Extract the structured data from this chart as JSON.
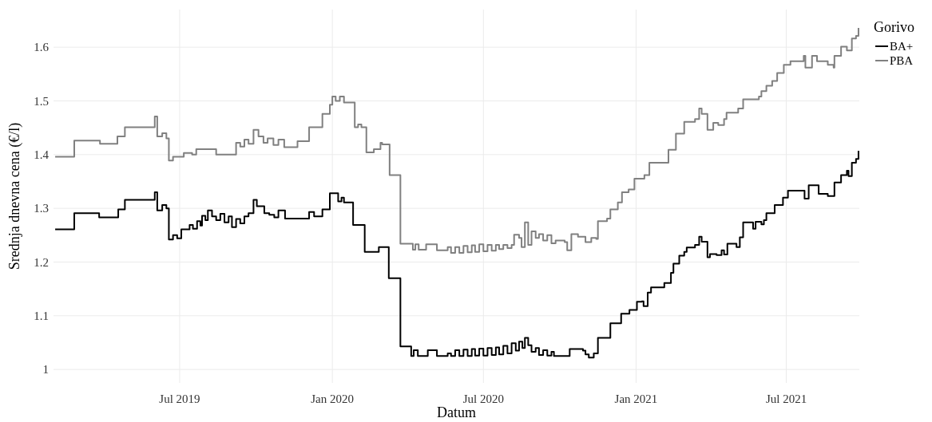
{
  "chart_data": {
    "type": "step",
    "xlabel": "Datum",
    "ylabel": "Srednja dnevna cena (€/l)",
    "legend_title": "Gorivo",
    "legend": "top right",
    "grid": true,
    "line_style": "solid",
    "xlim": [
      "2019-01-30",
      "2021-09-27"
    ],
    "xticks": [
      {
        "value": "2019-07-01",
        "label": "Jul 2019"
      },
      {
        "value": "2020-01-01",
        "label": "Jan 2020"
      },
      {
        "value": "2020-07-01",
        "label": "Jul 2020"
      },
      {
        "value": "2021-01-01",
        "label": "Jan 2021"
      },
      {
        "value": "2021-07-01",
        "label": "Jul 2021"
      }
    ],
    "ylim": [
      0.975,
      1.67
    ],
    "yticks": [
      1,
      1.1,
      1.2,
      1.3,
      1.4,
      1.5,
      1.6
    ],
    "series": [
      {
        "name": "BA+",
        "color": "#000000",
        "x": [
          "2019-02-01",
          "2019-02-24",
          "2019-03-26",
          "2019-04-18",
          "2019-04-26",
          "2019-06-01",
          "2019-06-04",
          "2019-06-10",
          "2019-06-15",
          "2019-06-18",
          "2019-06-23",
          "2019-06-28",
          "2019-07-03",
          "2019-07-13",
          "2019-07-17",
          "2019-07-22",
          "2019-07-26",
          "2019-07-28",
          "2019-08-01",
          "2019-08-04",
          "2019-08-09",
          "2019-08-14",
          "2019-08-19",
          "2019-08-24",
          "2019-08-29",
          "2019-09-02",
          "2019-09-07",
          "2019-09-12",
          "2019-09-17",
          "2019-09-22",
          "2019-09-28",
          "2019-10-02",
          "2019-10-11",
          "2019-10-17",
          "2019-10-23",
          "2019-10-28",
          "2019-11-05",
          "2019-12-04",
          "2019-12-10",
          "2019-12-20",
          "2019-12-29",
          "2020-01-08",
          "2020-01-12",
          "2020-01-15",
          "2020-01-26",
          "2020-02-09",
          "2020-02-26",
          "2020-03-09",
          "2020-03-23",
          "2020-04-05",
          "2020-04-08",
          "2020-04-13",
          "2020-04-25",
          "2020-05-06",
          "2020-05-14",
          "2020-05-19",
          "2020-05-23",
          "2020-05-28",
          "2020-06-02",
          "2020-06-07",
          "2020-06-12",
          "2020-06-17",
          "2020-06-21",
          "2020-06-26",
          "2020-07-01",
          "2020-07-06",
          "2020-07-11",
          "2020-07-16",
          "2020-07-20",
          "2020-07-25",
          "2020-07-30",
          "2020-08-04",
          "2020-08-09",
          "2020-08-13",
          "2020-08-17",
          "2020-08-20",
          "2020-08-24",
          "2020-08-28",
          "2020-09-02",
          "2020-09-06",
          "2020-09-11",
          "2020-09-16",
          "2020-09-21",
          "2020-09-24",
          "2020-10-13",
          "2020-10-29",
          "2020-11-01",
          "2020-11-05",
          "2020-11-11",
          "2020-11-16",
          "2020-12-01",
          "2020-12-14",
          "2020-12-24",
          "2021-01-02",
          "2021-01-08",
          "2021-01-10",
          "2021-01-15",
          "2021-01-19",
          "2021-02-04",
          "2021-02-12",
          "2021-02-15",
          "2021-02-22",
          "2021-02-28",
          "2021-03-03",
          "2021-03-13",
          "2021-03-18",
          "2021-03-21",
          "2021-03-28",
          "2021-03-31",
          "2021-04-08",
          "2021-04-14",
          "2021-04-17",
          "2021-04-21",
          "2021-05-02",
          "2021-05-06",
          "2021-05-10",
          "2021-05-22",
          "2021-05-25",
          "2021-06-01",
          "2021-06-04",
          "2021-06-07",
          "2021-06-17",
          "2021-06-27",
          "2021-07-03",
          "2021-07-23",
          "2021-07-28",
          "2021-08-09",
          "2021-08-20",
          "2021-08-28",
          "2021-09-05",
          "2021-09-12",
          "2021-09-14",
          "2021-09-18",
          "2021-09-23",
          "2021-09-26"
        ],
        "values": [
          1.261,
          1.291,
          1.283,
          1.298,
          1.316,
          1.33,
          1.296,
          1.306,
          1.3,
          1.242,
          1.25,
          1.244,
          1.261,
          1.269,
          1.262,
          1.276,
          1.268,
          1.286,
          1.278,
          1.296,
          1.285,
          1.278,
          1.29,
          1.274,
          1.285,
          1.265,
          1.28,
          1.272,
          1.285,
          1.291,
          1.316,
          1.304,
          1.291,
          1.288,
          1.283,
          1.296,
          1.281,
          1.293,
          1.285,
          1.298,
          1.328,
          1.313,
          1.32,
          1.311,
          1.269,
          1.219,
          1.228,
          1.17,
          1.043,
          1.025,
          1.036,
          1.025,
          1.036,
          1.025,
          1.025,
          1.03,
          1.025,
          1.036,
          1.025,
          1.037,
          1.025,
          1.038,
          1.026,
          1.039,
          1.026,
          1.04,
          1.027,
          1.041,
          1.028,
          1.044,
          1.03,
          1.049,
          1.035,
          1.052,
          1.04,
          1.059,
          1.045,
          1.033,
          1.04,
          1.027,
          1.036,
          1.026,
          1.033,
          1.025,
          1.038,
          1.035,
          1.028,
          1.022,
          1.03,
          1.059,
          1.086,
          1.104,
          1.111,
          1.126,
          1.127,
          1.118,
          1.143,
          1.153,
          1.161,
          1.18,
          1.197,
          1.212,
          1.219,
          1.227,
          1.232,
          1.247,
          1.238,
          1.209,
          1.215,
          1.213,
          1.222,
          1.214,
          1.234,
          1.228,
          1.246,
          1.274,
          1.262,
          1.275,
          1.27,
          1.278,
          1.291,
          1.306,
          1.32,
          1.333,
          1.318,
          1.343,
          1.327,
          1.323,
          1.348,
          1.362,
          1.37,
          1.36,
          1.385,
          1.392,
          1.407
        ]
      },
      {
        "name": "PBA",
        "color": "#808080",
        "x": [
          "2019-02-01",
          "2019-02-24",
          "2019-03-27",
          "2019-04-17",
          "2019-04-26",
          "2019-06-01",
          "2019-06-04",
          "2019-06-10",
          "2019-06-15",
          "2019-06-18",
          "2019-06-23",
          "2019-07-06",
          "2019-07-16",
          "2019-07-21",
          "2019-08-14",
          "2019-09-07",
          "2019-09-12",
          "2019-09-17",
          "2019-09-22",
          "2019-09-28",
          "2019-10-04",
          "2019-10-10",
          "2019-10-15",
          "2019-10-22",
          "2019-10-28",
          "2019-11-04",
          "2019-11-20",
          "2019-12-04",
          "2019-12-20",
          "2019-12-29",
          "2020-01-01",
          "2020-01-05",
          "2020-01-10",
          "2020-01-15",
          "2020-01-28",
          "2020-02-01",
          "2020-02-05",
          "2020-02-11",
          "2020-02-20",
          "2020-02-28",
          "2020-03-01",
          "2020-03-10",
          "2020-03-23",
          "2020-04-04",
          "2020-04-07",
          "2020-04-10",
          "2020-04-14",
          "2020-04-23",
          "2020-05-06",
          "2020-05-19",
          "2020-05-23",
          "2020-05-28",
          "2020-06-02",
          "2020-06-07",
          "2020-06-12",
          "2020-06-17",
          "2020-06-21",
          "2020-06-26",
          "2020-07-01",
          "2020-07-06",
          "2020-07-11",
          "2020-07-16",
          "2020-07-20",
          "2020-07-25",
          "2020-07-30",
          "2020-08-04",
          "2020-08-07",
          "2020-08-13",
          "2020-08-16",
          "2020-08-20",
          "2020-08-24",
          "2020-08-28",
          "2020-09-02",
          "2020-09-06",
          "2020-09-11",
          "2020-09-16",
          "2020-09-21",
          "2020-09-26",
          "2020-10-07",
          "2020-10-10",
          "2020-10-15",
          "2020-10-23",
          "2020-11-01",
          "2020-11-08",
          "2020-11-14",
          "2020-11-16",
          "2020-11-27",
          "2020-12-01",
          "2020-12-10",
          "2020-12-15",
          "2020-12-23",
          "2020-12-30",
          "2021-01-11",
          "2021-01-17",
          "2021-02-09",
          "2021-02-18",
          "2021-02-28",
          "2021-03-13",
          "2021-03-18",
          "2021-03-21",
          "2021-03-28",
          "2021-04-04",
          "2021-04-10",
          "2021-04-17",
          "2021-04-20",
          "2021-05-04",
          "2021-05-10",
          "2021-05-29",
          "2021-06-01",
          "2021-06-07",
          "2021-06-14",
          "2021-06-20",
          "2021-06-28",
          "2021-07-06",
          "2021-07-22",
          "2021-07-24",
          "2021-08-01",
          "2021-08-07",
          "2021-08-20",
          "2021-08-27",
          "2021-08-28",
          "2021-09-05",
          "2021-09-12",
          "2021-09-18",
          "2021-09-23",
          "2021-09-26"
        ],
        "values": [
          1.396,
          1.426,
          1.42,
          1.434,
          1.451,
          1.471,
          1.434,
          1.44,
          1.43,
          1.389,
          1.396,
          1.403,
          1.4,
          1.41,
          1.4,
          1.422,
          1.415,
          1.428,
          1.42,
          1.446,
          1.434,
          1.422,
          1.43,
          1.418,
          1.428,
          1.414,
          1.425,
          1.451,
          1.476,
          1.493,
          1.508,
          1.5,
          1.508,
          1.497,
          1.451,
          1.456,
          1.451,
          1.404,
          1.41,
          1.422,
          1.419,
          1.362,
          1.234,
          1.234,
          1.223,
          1.233,
          1.223,
          1.233,
          1.222,
          1.228,
          1.217,
          1.228,
          1.217,
          1.23,
          1.218,
          1.231,
          1.219,
          1.233,
          1.22,
          1.232,
          1.221,
          1.232,
          1.224,
          1.232,
          1.226,
          1.232,
          1.251,
          1.245,
          1.228,
          1.274,
          1.232,
          1.257,
          1.245,
          1.252,
          1.24,
          1.25,
          1.235,
          1.24,
          1.237,
          1.222,
          1.252,
          1.247,
          1.237,
          1.245,
          1.243,
          1.276,
          1.281,
          1.298,
          1.311,
          1.33,
          1.335,
          1.355,
          1.362,
          1.385,
          1.409,
          1.439,
          1.461,
          1.466,
          1.486,
          1.476,
          1.446,
          1.459,
          1.455,
          1.466,
          1.478,
          1.486,
          1.503,
          1.508,
          1.518,
          1.528,
          1.537,
          1.552,
          1.567,
          1.574,
          1.584,
          1.562,
          1.584,
          1.574,
          1.567,
          1.562,
          1.584,
          1.601,
          1.594,
          1.616,
          1.621,
          1.636
        ]
      }
    ]
  }
}
